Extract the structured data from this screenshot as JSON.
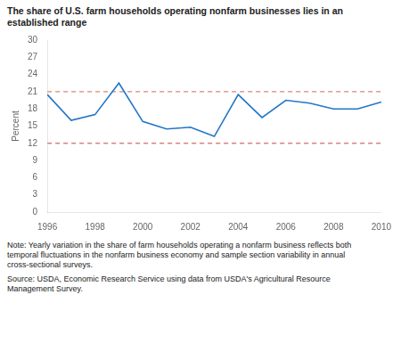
{
  "chart_data": {
    "type": "line",
    "title": [
      "The share of U.S. farm households operating nonfarm businesses lies in an",
      "established range"
    ],
    "ylabel": "Percent",
    "x": [
      1996,
      1997,
      1998,
      1999,
      2000,
      2001,
      2002,
      2003,
      2004,
      2005,
      2006,
      2007,
      2008,
      2009,
      2010
    ],
    "values": [
      20.5,
      16.0,
      17.0,
      22.5,
      15.8,
      14.5,
      14.8,
      13.2,
      20.5,
      16.5,
      19.5,
      19.0,
      18.0,
      18.0,
      19.2
    ],
    "color": "#2176c7",
    "reference_lines": [
      {
        "value": 21,
        "color": "#d9827a",
        "line_style": "dashed"
      },
      {
        "value": 12,
        "color": "#d9827a",
        "line_style": "dashed"
      }
    ],
    "xlim": [
      1996,
      2010
    ],
    "xticks": [
      1996,
      1998,
      2000,
      2002,
      2004,
      2006,
      2008,
      2010
    ],
    "ylim": [
      0,
      30
    ],
    "yticks": [
      0,
      3,
      6,
      9,
      12,
      15,
      18,
      21,
      24,
      27,
      30
    ],
    "grid": false,
    "notes": [
      "Note: Yearly variation in the share of farm households operating a nonfarm business reflects both\ntemporal fluctuations in the nonfarm business economy and sample section variability in annual\ncross-sectional surveys.",
      "Source: USDA, Economic Research Service using data from USDA's Agricultural Resource\nManagement Survey."
    ]
  }
}
